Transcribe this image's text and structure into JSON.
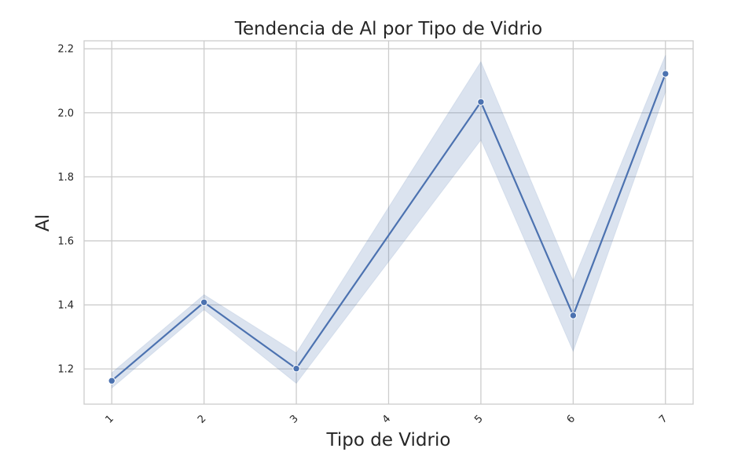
{
  "chart_data": {
    "type": "line",
    "title": "Tendencia de Al por Tipo de Vidrio",
    "xlabel": "Tipo de Vidrio",
    "ylabel": "Al",
    "x": [
      1,
      2,
      3,
      4,
      5,
      6,
      7
    ],
    "x_tick_labels": [
      "1",
      "2",
      "3",
      "4",
      "5",
      "6",
      "7"
    ],
    "series": [
      {
        "values": [
          1.163,
          1.408,
          1.201,
          null,
          2.034,
          1.367,
          2.122
        ],
        "ci_lower": [
          1.14,
          1.385,
          1.155,
          null,
          1.915,
          1.255,
          2.065
        ],
        "ci_upper": [
          1.188,
          1.432,
          1.25,
          null,
          2.16,
          1.475,
          2.18
        ],
        "color": "#4c72b0"
      }
    ],
    "xlim": [
      0.7,
      7.3
    ],
    "ylim": [
      1.09,
      2.225
    ],
    "y_ticks": [
      1.2,
      1.4,
      1.6,
      1.8,
      2.0,
      2.2
    ],
    "y_tick_labels": [
      "1.2",
      "1.4",
      "1.6",
      "1.8",
      "2.0",
      "2.2"
    ],
    "grid": true,
    "band_color": "#4c72b0",
    "grid_color": "#cccccc"
  }
}
